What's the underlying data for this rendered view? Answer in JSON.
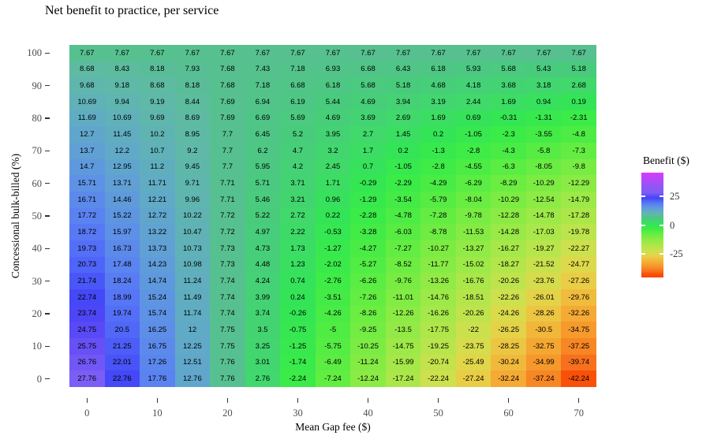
{
  "title": "Net benefit to practice, per service",
  "chart_data": {
    "type": "heatmap",
    "title": "Net benefit to practice, per service",
    "xlabel": "Mean Gap fee ($)",
    "ylabel": "Concessional bulk-billed (%)",
    "x_values": [
      0,
      5,
      10,
      15,
      20,
      25,
      30,
      35,
      40,
      45,
      50,
      55,
      60,
      65,
      70
    ],
    "x_tick_labels": [
      "0",
      "10",
      "20",
      "30",
      "40",
      "50",
      "60",
      "70"
    ],
    "y_values": [
      100,
      95,
      90,
      85,
      80,
      75,
      70,
      65,
      60,
      55,
      50,
      45,
      40,
      35,
      30,
      25,
      20,
      15,
      10,
      5,
      0
    ],
    "y_tick_labels": [
      "100",
      "90",
      "80",
      "70",
      "60",
      "50",
      "40",
      "30",
      "20",
      "10",
      "0"
    ],
    "values": [
      [
        7.67,
        7.67,
        7.67,
        7.67,
        7.67,
        7.67,
        7.67,
        7.67,
        7.67,
        7.67,
        7.67,
        7.67,
        7.67,
        7.67,
        7.67
      ],
      [
        8.68,
        8.43,
        8.18,
        7.93,
        7.68,
        7.43,
        7.18,
        6.93,
        6.68,
        6.43,
        6.18,
        5.93,
        5.68,
        5.43,
        5.18
      ],
      [
        9.68,
        9.18,
        8.68,
        8.18,
        7.68,
        7.18,
        6.68,
        6.18,
        5.68,
        5.18,
        4.68,
        4.18,
        3.68,
        3.18,
        2.68
      ],
      [
        10.69,
        9.94,
        9.19,
        8.44,
        7.69,
        6.94,
        6.19,
        5.44,
        4.69,
        3.94,
        3.19,
        2.44,
        1.69,
        0.94,
        0.19
      ],
      [
        11.69,
        10.69,
        9.69,
        8.69,
        7.69,
        6.69,
        5.69,
        4.69,
        3.69,
        2.69,
        1.69,
        0.69,
        -0.31,
        -1.31,
        -2.31
      ],
      [
        12.7,
        11.45,
        10.2,
        8.95,
        7.7,
        6.45,
        5.2,
        3.95,
        2.7,
        1.45,
        0.2,
        -1.05,
        -2.3,
        -3.55,
        -4.8
      ],
      [
        13.7,
        12.2,
        10.7,
        9.2,
        7.7,
        6.2,
        4.7,
        3.2,
        1.7,
        0.2,
        -1.3,
        -2.8,
        -4.3,
        -5.8,
        -7.3
      ],
      [
        14.7,
        12.95,
        11.2,
        9.45,
        7.7,
        5.95,
        4.2,
        2.45,
        0.7,
        -1.05,
        -2.8,
        -4.55,
        -6.3,
        -8.05,
        -9.8
      ],
      [
        15.71,
        13.71,
        11.71,
        9.71,
        7.71,
        5.71,
        3.71,
        1.71,
        -0.29,
        -2.29,
        -4.29,
        -6.29,
        -8.29,
        -10.29,
        -12.29
      ],
      [
        16.71,
        14.46,
        12.21,
        9.96,
        7.71,
        5.46,
        3.21,
        0.96,
        -1.29,
        -3.54,
        -5.79,
        -8.04,
        -10.29,
        -12.54,
        -14.79
      ],
      [
        17.72,
        15.22,
        12.72,
        10.22,
        7.72,
        5.22,
        2.72,
        0.22,
        -2.28,
        -4.78,
        -7.28,
        -9.78,
        -12.28,
        -14.78,
        -17.28
      ],
      [
        18.72,
        15.97,
        13.22,
        10.47,
        7.72,
        4.97,
        2.22,
        -0.53,
        -3.28,
        -6.03,
        -8.78,
        -11.53,
        -14.28,
        -17.03,
        -19.78
      ],
      [
        19.73,
        16.73,
        13.73,
        10.73,
        7.73,
        4.73,
        1.73,
        -1.27,
        -4.27,
        -7.27,
        -10.27,
        -13.27,
        -16.27,
        -19.27,
        -22.27
      ],
      [
        20.73,
        17.48,
        14.23,
        10.98,
        7.73,
        4.48,
        1.23,
        -2.02,
        -5.27,
        -8.52,
        -11.77,
        -15.02,
        -18.27,
        -21.52,
        -24.77
      ],
      [
        21.74,
        18.24,
        14.74,
        11.24,
        7.74,
        4.24,
        0.74,
        -2.76,
        -6.26,
        -9.76,
        -13.26,
        -16.76,
        -20.26,
        -23.76,
        -27.26
      ],
      [
        22.74,
        18.99,
        15.24,
        11.49,
        7.74,
        3.99,
        0.24,
        -3.51,
        -7.26,
        -11.01,
        -14.76,
        -18.51,
        -22.26,
        -26.01,
        -29.76
      ],
      [
        23.74,
        19.74,
        15.74,
        11.74,
        7.74,
        3.74,
        -0.26,
        -4.26,
        -8.26,
        -12.26,
        -16.26,
        -20.26,
        -24.26,
        -28.26,
        -32.26
      ],
      [
        24.75,
        20.5,
        16.25,
        12,
        7.75,
        3.5,
        -0.75,
        -5,
        -9.25,
        -13.5,
        -17.75,
        -22,
        -26.25,
        -30.5,
        -34.75
      ],
      [
        25.75,
        21.25,
        16.75,
        12.25,
        7.75,
        3.25,
        -1.25,
        -5.75,
        -10.25,
        -14.75,
        -19.25,
        -23.75,
        -28.25,
        -32.75,
        -37.25
      ],
      [
        26.76,
        22.01,
        17.26,
        12.51,
        7.76,
        3.01,
        -1.74,
        -6.49,
        -11.24,
        -15.99,
        -20.74,
        -25.49,
        -30.24,
        -34.99,
        -39.74
      ],
      [
        27.76,
        22.76,
        17.76,
        12.76,
        7.76,
        2.76,
        -2.24,
        -7.24,
        -12.24,
        -17.24,
        -22.24,
        -27.24,
        -32.24,
        -37.24,
        -42.24
      ]
    ],
    "legend": {
      "title": "Benefit ($)",
      "tick_labels": [
        "25",
        "0",
        "-25"
      ],
      "tick_values": [
        25,
        0,
        -25
      ],
      "limits": [
        -45,
        45
      ],
      "position": "right"
    },
    "color_scale_anchors": [
      [
        -45,
        "#FA4400"
      ],
      [
        -42.24,
        "#F85009"
      ],
      [
        -39.74,
        "#F7701E"
      ],
      [
        -37.25,
        "#F78624"
      ],
      [
        -34.75,
        "#F69A2C"
      ],
      [
        -32.26,
        "#F4AA34"
      ],
      [
        -29.76,
        "#F0BC3D"
      ],
      [
        -27.26,
        "#E9CD46"
      ],
      [
        -24.77,
        "#DDD94B"
      ],
      [
        -22.27,
        "#CDE04D"
      ],
      [
        -19.78,
        "#BCE44C"
      ],
      [
        -17.28,
        "#ACE74A"
      ],
      [
        -14.79,
        "#9CE948"
      ],
      [
        -12.29,
        "#8BEB45"
      ],
      [
        -9.8,
        "#78EC43"
      ],
      [
        -7.3,
        "#63ED42"
      ],
      [
        -4.8,
        "#4DEC44"
      ],
      [
        -2.31,
        "#3BEB48"
      ],
      [
        0.19,
        "#33E556"
      ],
      [
        2.68,
        "#41D86C"
      ],
      [
        5.18,
        "#48CC7C"
      ],
      [
        7.67,
        "#56C08F"
      ],
      [
        8.68,
        "#5EBBA2"
      ],
      [
        9.68,
        "#5FB6AD"
      ],
      [
        10.69,
        "#60B1B8"
      ],
      [
        11.69,
        "#60ACC2"
      ],
      [
        12.7,
        "#60A6CC"
      ],
      [
        13.7,
        "#60A0D5"
      ],
      [
        14.7,
        "#5F99DD"
      ],
      [
        15.71,
        "#5E92E5"
      ],
      [
        16.71,
        "#5C8AEB"
      ],
      [
        17.72,
        "#5A82F0"
      ],
      [
        18.72,
        "#5779F4"
      ],
      [
        19.73,
        "#536FF7"
      ],
      [
        20.73,
        "#4F64F8"
      ],
      [
        21.74,
        "#4A57F8"
      ],
      [
        22.74,
        "#4448F7"
      ],
      [
        23.74,
        "#4D46F6"
      ],
      [
        24.75,
        "#5A49F6"
      ],
      [
        25.75,
        "#6650F6"
      ],
      [
        26.76,
        "#7157F6"
      ],
      [
        27.76,
        "#7B5EF6"
      ],
      [
        35,
        "#9C51F5"
      ],
      [
        45,
        "#D93BFC"
      ]
    ],
    "grid": false
  },
  "colors": {
    "background": "#FFFFFF",
    "tick_label": "#4D4D4D",
    "axis_title": "#000000",
    "cell_text": "#000000",
    "tick_mark": "#333333"
  }
}
